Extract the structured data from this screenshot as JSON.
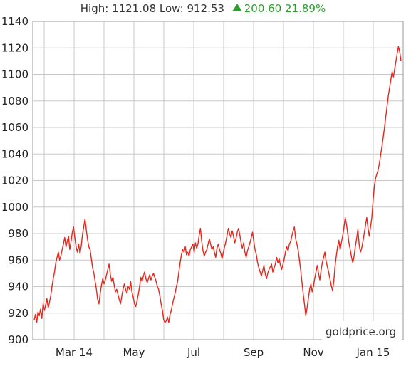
{
  "summary": {
    "high_label": "High:",
    "high_value": "1121.08",
    "low_label": "Low:",
    "low_value": "912.53",
    "change": "200.60",
    "change_pct": "21.89%",
    "up_color": "#2e9e2e"
  },
  "watermark": "goldprice.org",
  "chart_data": {
    "type": "line",
    "title": "",
    "xlabel": "",
    "ylabel": "",
    "ylim": [
      900,
      1140
    ],
    "yticks": [
      900,
      920,
      940,
      960,
      980,
      1000,
      1020,
      1040,
      1060,
      1080,
      1100,
      1120,
      1140
    ],
    "xticks": [
      "Mar 14",
      "May",
      "Jul",
      "Sep",
      "Nov",
      "Jan 15"
    ],
    "grid": true,
    "line_color": "#e8261c",
    "series": [
      {
        "values": [
          915,
          919,
          913,
          921,
          918,
          923,
          916,
          927,
          922,
          926,
          931,
          924,
          928,
          933,
          940,
          946,
          951,
          958,
          962,
          966,
          960,
          963,
          968,
          972,
          977,
          970,
          974,
          978,
          968,
          974,
          981,
          985,
          977,
          970,
          966,
          972,
          965,
          970,
          979,
          985,
          991,
          983,
          976,
          970,
          968,
          961,
          954,
          950,
          944,
          938,
          930,
          927,
          935,
          941,
          946,
          942,
          945,
          949,
          953,
          957,
          949,
          944,
          947,
          941,
          936,
          938,
          934,
          930,
          927,
          933,
          938,
          942,
          938,
          935,
          940,
          938,
          944,
          936,
          932,
          927,
          925,
          929,
          934,
          940,
          947,
          944,
          948,
          951,
          946,
          943,
          946,
          949,
          945,
          948,
          950,
          947,
          944,
          940,
          938,
          933,
          927,
          922,
          915,
          913,
          914,
          917,
          913,
          919,
          922,
          927,
          931,
          935,
          940,
          944,
          951,
          958,
          964,
          968,
          966,
          970,
          964,
          966,
          963,
          968,
          970,
          972,
          966,
          973,
          969,
          972,
          979,
          984,
          974,
          967,
          963,
          966,
          968,
          972,
          976,
          972,
          968,
          970,
          966,
          962,
          969,
          972,
          968,
          965,
          961,
          966,
          970,
          974,
          979,
          984,
          980,
          977,
          982,
          978,
          973,
          976,
          981,
          984,
          979,
          973,
          969,
          973,
          966,
          962,
          967,
          970,
          973,
          977,
          981,
          974,
          968,
          964,
          958,
          954,
          951,
          948,
          952,
          956,
          950,
          946,
          950,
          953,
          955,
          957,
          951,
          954,
          957,
          962,
          958,
          961,
          956,
          953,
          957,
          961,
          966,
          970,
          967,
          972,
          974,
          978,
          982,
          985,
          976,
          972,
          967,
          960,
          952,
          943,
          934,
          926,
          918,
          924,
          931,
          938,
          942,
          936,
          940,
          946,
          951,
          956,
          950,
          945,
          952,
          958,
          962,
          966,
          959,
          955,
          951,
          946,
          941,
          937,
          944,
          955,
          963,
          970,
          975,
          968,
          973,
          978,
          984,
          992,
          987,
          980,
          973,
          968,
          962,
          958,
          963,
          970,
          976,
          983,
          972,
          966,
          969,
          974,
          980,
          986,
          992,
          984,
          978,
          985,
          992,
          1005,
          1016,
          1022,
          1025,
          1028,
          1033,
          1040,
          1046,
          1053,
          1060,
          1068,
          1076,
          1084,
          1090,
          1096,
          1102,
          1098,
          1104,
          1110,
          1116,
          1121,
          1117,
          1110
        ]
      }
    ]
  }
}
